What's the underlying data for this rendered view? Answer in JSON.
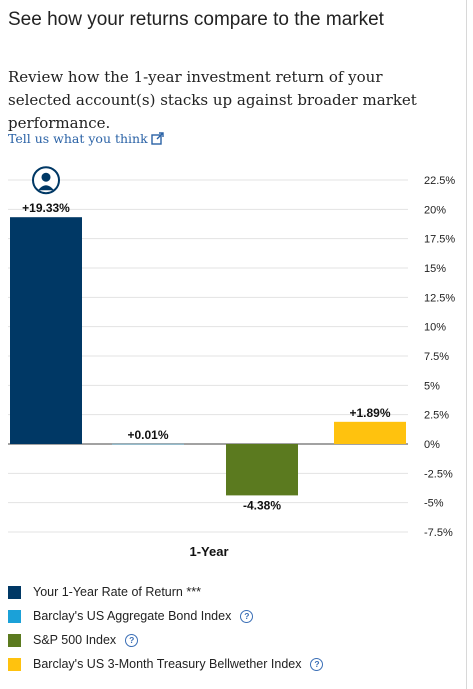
{
  "header": {
    "title": "See how your returns compare to the market",
    "description": "Review how the 1-year investment return of your selected account(s) stacks up against broader market performance.",
    "feedback_link": "Tell us what you think"
  },
  "colors": {
    "your_return": "#003865",
    "bond_index": "#1ba1d8",
    "sp500": "#5b7a1f",
    "treasury": "#ffc20e",
    "link": "#2a62a6"
  },
  "chart_data": {
    "type": "bar",
    "categories": [
      "1-Year"
    ],
    "xlabel": "1-Year",
    "ylabel": "",
    "ylim": [
      -7.5,
      22.5
    ],
    "yticks": [
      "22.5%",
      "20%",
      "17.5%",
      "15%",
      "12.5%",
      "10%",
      "7.5%",
      "5%",
      "2.5%",
      "0%",
      "-2.5%",
      "-5%",
      "-7.5%"
    ],
    "grid": true,
    "series": [
      {
        "name": "Your 1-Year Rate of Return ***",
        "values": [
          19.33
        ],
        "label": "+19.33%",
        "color": "#003865"
      },
      {
        "name": "Barclay's US Aggregate Bond Index",
        "values": [
          0.01
        ],
        "label": "+0.01%",
        "color": "#1ba1d8"
      },
      {
        "name": "S&P 500 Index",
        "values": [
          -4.38
        ],
        "label": "-4.38%",
        "color": "#5b7a1f"
      },
      {
        "name": "Barclay's US 3-Month Treasury Bellwether Index",
        "values": [
          1.89
        ],
        "label": "+1.89%",
        "color": "#ffc20e"
      }
    ]
  },
  "legend": {
    "items": [
      {
        "label": "Your 1-Year Rate of Return ***",
        "color": "#003865",
        "help": false
      },
      {
        "label": "Barclay's US Aggregate Bond Index",
        "color": "#1ba1d8",
        "help": true
      },
      {
        "label": "S&P 500 Index",
        "color": "#5b7a1f",
        "help": true
      },
      {
        "label": "Barclay's US 3-Month Treasury Bellwether Index",
        "color": "#ffc20e",
        "help": true
      }
    ],
    "help_glyph": "?"
  }
}
